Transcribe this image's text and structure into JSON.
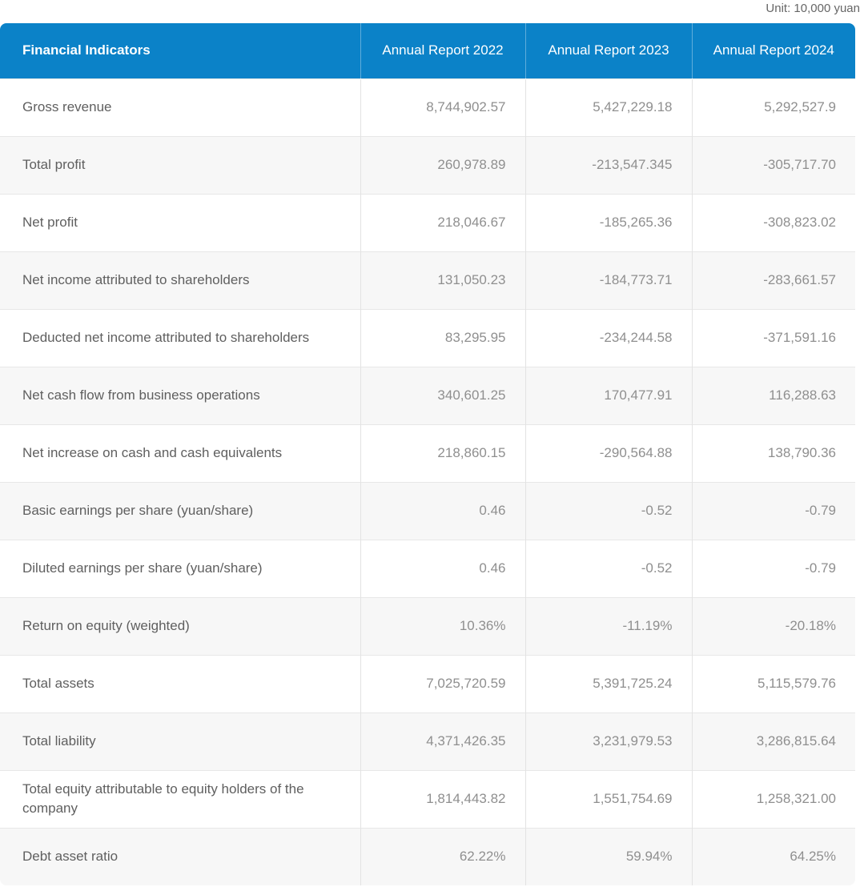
{
  "unit_note": "Unit: 10,000 yuan",
  "table": {
    "columns": [
      "Financial Indicators",
      "Annual Report 2022",
      "Annual Report 2023",
      "Annual Report 2024"
    ],
    "rows": [
      {
        "label": "Gross revenue",
        "values": [
          "8,744,902.57",
          "5,427,229.18",
          "5,292,527.9"
        ]
      },
      {
        "label": "Total profit",
        "values": [
          "260,978.89",
          "-213,547.345",
          "-305,717.70"
        ]
      },
      {
        "label": "Net profit",
        "values": [
          "218,046.67",
          "-185,265.36",
          "-308,823.02"
        ]
      },
      {
        "label": "Net income attributed to shareholders",
        "values": [
          "131,050.23",
          "-184,773.71",
          "-283,661.57"
        ]
      },
      {
        "label": "Deducted net income attributed to shareholders",
        "values": [
          "83,295.95",
          "-234,244.58",
          "-371,591.16"
        ]
      },
      {
        "label": "Net cash flow from business operations",
        "values": [
          "340,601.25",
          "170,477.91",
          "116,288.63"
        ]
      },
      {
        "label": "Net increase on cash and cash equivalents",
        "values": [
          "218,860.15",
          "-290,564.88",
          "138,790.36"
        ]
      },
      {
        "label": "Basic earnings per share (yuan/share)",
        "values": [
          "0.46",
          "-0.52",
          "-0.79"
        ]
      },
      {
        "label": "Diluted earnings per share (yuan/share)",
        "values": [
          "0.46",
          "-0.52",
          "-0.79"
        ]
      },
      {
        "label": "Return on equity (weighted)",
        "values": [
          "10.36%",
          "-11.19%",
          "-20.18%"
        ]
      },
      {
        "label": "Total assets",
        "values": [
          "7,025,720.59",
          "5,391,725.24",
          "5,115,579.76"
        ]
      },
      {
        "label": "Total liability",
        "values": [
          "4,371,426.35",
          "3,231,979.53",
          "3,286,815.64"
        ]
      },
      {
        "label": "Total equity attributable to equity holders of the company",
        "values": [
          "1,814,443.82",
          "1,551,754.69",
          "1,258,321.00"
        ]
      },
      {
        "label": "Debt asset ratio",
        "values": [
          "62.22%",
          "59.94%",
          "64.25%"
        ]
      }
    ]
  },
  "colors": {
    "header_bg": "#0b82c8",
    "header_text": "#ffffff",
    "row_stripe": "#f7f7f7",
    "row_plain": "#ffffff",
    "label_text": "#5f5f5f",
    "value_text": "#8f8f8f",
    "note_text": "#666666",
    "divider": "#e3e3e3"
  }
}
